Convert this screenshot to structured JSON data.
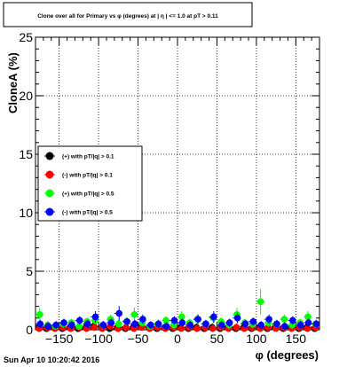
{
  "title": "Clone  over all for Primary vs φ (degrees) at | η | <= 1.0 at pT > 0.11",
  "timestamp": "Sun Apr 10 10:20:42 2016",
  "colors": {
    "black": "#000000",
    "red": "#ff0000",
    "green": "#00ff00",
    "blue": "#0000ff"
  },
  "chart_data": {
    "type": "scatter",
    "xlabel": "φ (degrees)",
    "ylabel": "CloneA (%)",
    "xlim": [
      -180,
      180
    ],
    "ylim": [
      0,
      25
    ],
    "x_ticks": [
      -150,
      -100,
      -50,
      0,
      50,
      100,
      150
    ],
    "x_tick_labels": [
      "−150",
      "−100",
      "−50",
      "0",
      "50",
      "100",
      "150"
    ],
    "y_ticks": [
      0,
      5,
      10,
      15,
      20,
      25
    ],
    "y_tick_labels": [
      "0",
      "5",
      "10",
      "15",
      "20",
      "25"
    ],
    "grid": true,
    "legend_position": "left-middle",
    "x": [
      -175,
      -165,
      -155,
      -145,
      -135,
      -125,
      -115,
      -105,
      -95,
      -85,
      -75,
      -65,
      -55,
      -45,
      -35,
      -25,
      -15,
      -5,
      5,
      15,
      25,
      35,
      45,
      55,
      65,
      75,
      85,
      95,
      105,
      115,
      125,
      135,
      145,
      155,
      165,
      175
    ],
    "series": [
      {
        "name": "(+) with pT/|q| > 0.1",
        "color": "#000000",
        "values": [
          0.2,
          0.1,
          0.2,
          0.1,
          0.2,
          0.1,
          0.2,
          0.3,
          0.2,
          0.1,
          0.2,
          0.1,
          0.2,
          0.3,
          0.2,
          0.1,
          0.2,
          0.1,
          0.2,
          0.1,
          0.2,
          0.1,
          0.2,
          0.1,
          0.2,
          0.1,
          0.2,
          0.1,
          0.2,
          0.1,
          0.2,
          0.1,
          0.2,
          0.1,
          0.2,
          0.1
        ]
      },
      {
        "name": "(-) with pT/|q| > 0.1",
        "color": "#ff0000",
        "values": [
          0.1,
          0.2,
          0.1,
          0.2,
          0.1,
          0.2,
          0.1,
          0.2,
          0.1,
          0.3,
          0.1,
          0.2,
          0.1,
          0.2,
          0.1,
          0.2,
          0.1,
          0.2,
          0.1,
          0.2,
          0.1,
          0.2,
          0.1,
          0.2,
          0.1,
          0.2,
          0.1,
          0.2,
          0.1,
          0.2,
          0.1,
          0.2,
          0.1,
          0.2,
          0.1,
          0.2
        ]
      },
      {
        "name": "(+) with pT/|q| > 0.5",
        "color": "#00ff00",
        "values": [
          1.3,
          0.4,
          0.3,
          0.5,
          0.6,
          0.3,
          0.7,
          0.8,
          0.4,
          0.9,
          0.5,
          0.7,
          1.3,
          0.6,
          0.3,
          0.5,
          0.8,
          0.4,
          1.1,
          0.6,
          0.9,
          0.5,
          1.0,
          0.7,
          0.4,
          1.3,
          0.6,
          0.5,
          2.4,
          0.6,
          0.5,
          0.9,
          0.4,
          0.6,
          1.1,
          0.5
        ]
      },
      {
        "name": "(-) with pT/|q| > 0.5",
        "color": "#0000ff",
        "values": [
          0.5,
          0.3,
          0.4,
          0.6,
          0.4,
          0.8,
          0.5,
          1.1,
          0.4,
          0.6,
          1.4,
          0.7,
          0.5,
          0.9,
          0.4,
          0.5,
          0.3,
          0.8,
          0.6,
          0.4,
          0.9,
          0.5,
          1.1,
          0.4,
          0.6,
          1.0,
          0.5,
          0.7,
          0.4,
          0.9,
          0.5,
          0.3,
          0.8,
          0.4,
          0.6,
          0.5
        ]
      }
    ]
  }
}
